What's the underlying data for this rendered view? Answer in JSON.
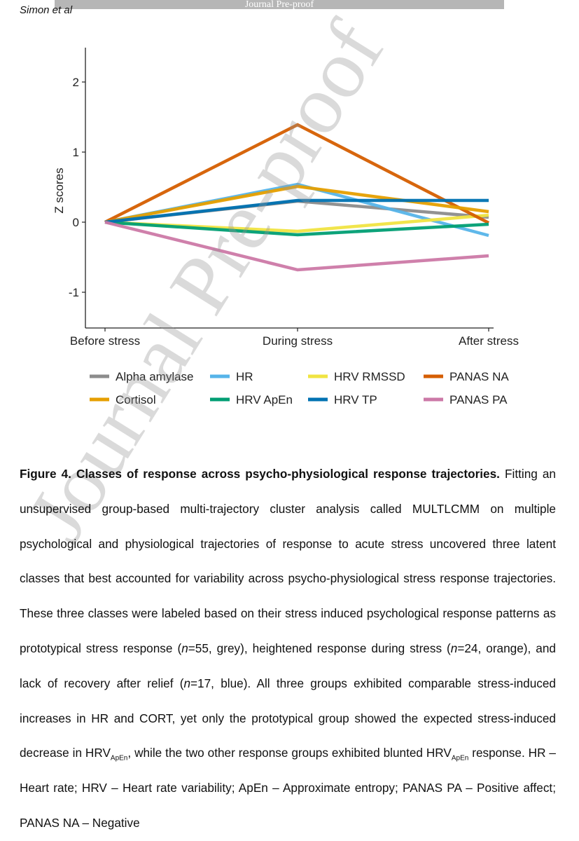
{
  "header": {
    "journal_banner": "Journal Pre-proof",
    "author": "Simon et al"
  },
  "chart_data": {
    "type": "line",
    "title": "",
    "xlabel": "",
    "ylabel": "Z scores",
    "categories": [
      "Before stress",
      "During stress",
      "After stress"
    ],
    "yticks": [
      "-1",
      "0",
      "1",
      "2"
    ],
    "ylim": [
      -1.5,
      2.5
    ],
    "series": [
      {
        "name": "Alpha amylase",
        "color": "#8c8c8c",
        "values": [
          0,
          0.3,
          0.07
        ]
      },
      {
        "name": "HR",
        "color": "#56b4e9",
        "values": [
          0,
          0.54,
          -0.19
        ]
      },
      {
        "name": "HRV RMSSD",
        "color": "#f0e442",
        "values": [
          0,
          -0.13,
          0.1
        ]
      },
      {
        "name": "PANAS NA",
        "color": "#d55e00",
        "values": [
          0,
          1.39,
          -0.01
        ]
      },
      {
        "name": "Cortisol",
        "color": "#e69f00",
        "values": [
          0,
          0.51,
          0.15
        ]
      },
      {
        "name": "HRV ApEn",
        "color": "#009e73",
        "values": [
          0,
          -0.18,
          -0.03
        ]
      },
      {
        "name": "HRV TP",
        "color": "#0072b2",
        "values": [
          0,
          0.31,
          0.31
        ]
      },
      {
        "name": "PANAS PA",
        "color": "#cc79a7",
        "values": [
          0,
          -0.68,
          -0.48
        ]
      }
    ]
  },
  "caption": {
    "figure_label": "Figure 4. Classes of response across psycho-physiological response trajectories.",
    "text_1": " Fitting an unsupervised group-based multi-trajectory cluster analysis called MULTLCMM on multiple psychological and physiological trajectories of response to acute stress uncovered three latent classes that best accounted for variability across psycho-physiological stress response trajectories. These three classes were labeled based on their stress induced psychological response patterns as prototypical stress response (",
    "n_1": "n",
    "text_2": "=55, grey), heightened response during stress (",
    "n_2": "n",
    "text_3": "=24, orange), and lack of recovery after relief (",
    "n_3": "n",
    "text_4": "=17, blue). All three groups exhibited comparable stress-induced increases in HR and CORT, yet only the prototypical group showed the expected stress-induced decrease in HRV",
    "sub_1": "ApEn",
    "text_5": ", while the two other response groups exhibited blunted HRV",
    "sub_2": "ApEn",
    "text_6": " response. HR – Heart rate; HRV – Heart rate variability; ApEn – Approximate entropy; PANAS PA – Positive affect; PANAS NA – Negative"
  },
  "watermark": "Journal Pre-proof"
}
